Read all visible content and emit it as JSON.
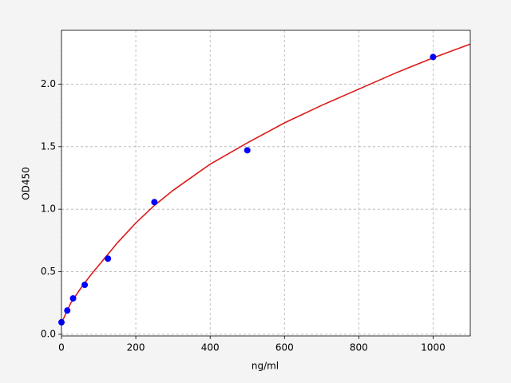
{
  "chart_data": {
    "type": "scatter",
    "xlabel": "ng/ml",
    "ylabel": "OD450",
    "xlim": [
      0,
      1100
    ],
    "ylim": [
      -0.013,
      2.43
    ],
    "xticks": [
      0,
      200,
      400,
      600,
      800,
      1000
    ],
    "yticks": [
      {
        "value": 0,
        "label": "0.0"
      },
      0.5,
      {
        "value": 1,
        "label": "1.0"
      },
      1.5,
      {
        "value": 2,
        "label": "2.0"
      }
    ],
    "grid": true,
    "series": [
      {
        "type": "scatter",
        "color": "#0000ff",
        "x": [
          0,
          15.6,
          31.25,
          62.5,
          125,
          250,
          500,
          1000
        ],
        "values": [
          0.096,
          0.19,
          0.287,
          0.395,
          0.605,
          1.057,
          1.471,
          2.217
        ]
      },
      {
        "type": "line",
        "color": "#dd1a1a",
        "x": [
          0,
          25,
          50,
          75,
          100,
          150,
          200,
          250,
          300,
          400,
          500,
          600,
          700,
          800,
          900,
          1000,
          1100
        ],
        "values": [
          0.09,
          0.25,
          0.36,
          0.46,
          0.55,
          0.73,
          0.89,
          1.03,
          1.15,
          1.36,
          1.53,
          1.69,
          1.83,
          1.96,
          2.09,
          2.21,
          2.32
        ]
      }
    ]
  }
}
